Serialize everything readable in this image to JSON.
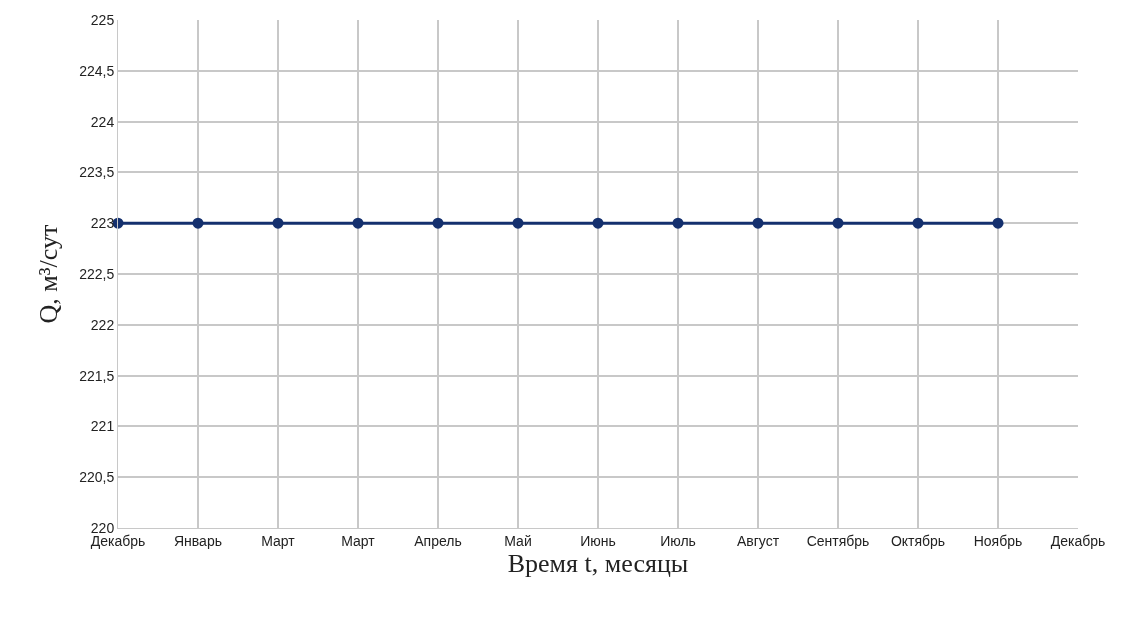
{
  "chart_data": {
    "type": "line",
    "xlabel": "Время t, месяцы",
    "ylabel": "Q, м³/сут",
    "categories": [
      "Декабрь",
      "Январь",
      "Март",
      "Март",
      "Апрель",
      "Май",
      "Июнь",
      "Июль",
      "Август",
      "Сентябрь",
      "Октябрь",
      "Ноябрь",
      "Декабрь"
    ],
    "series": [
      {
        "color": "#14306e",
        "values": [
          223,
          223,
          223,
          223,
          223,
          223,
          223,
          223,
          223,
          223,
          223,
          223,
          null
        ]
      }
    ],
    "ylim": [
      220,
      225
    ],
    "yticks": [
      220,
      {
        "value": 220.5,
        "label": "220,5"
      },
      221,
      {
        "value": 221.5,
        "label": "221,5"
      },
      222,
      {
        "value": 222.5,
        "label": "222,5"
      },
      223,
      {
        "value": 223.5,
        "label": "223,5"
      },
      224,
      {
        "value": 224.5,
        "label": "224,5"
      },
      225
    ],
    "grid": true,
    "marker": "circle",
    "line_style": "solid"
  }
}
